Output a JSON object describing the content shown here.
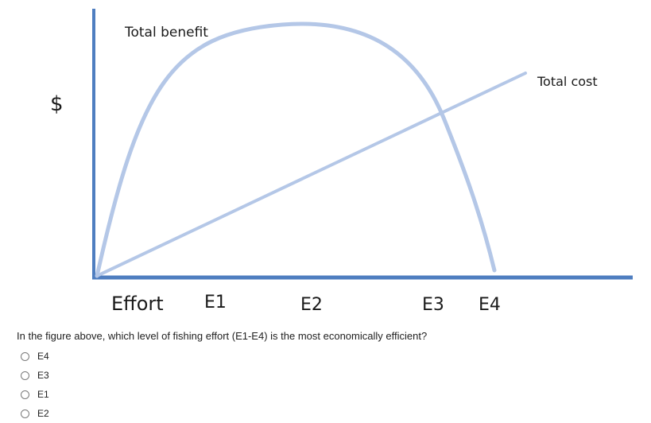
{
  "figure": {
    "y_axis_label": "$",
    "x_axis_label": "Effort",
    "x_ticks": [
      "E1",
      "E2",
      "E3",
      "E4"
    ],
    "benefit_label": "Total benefit",
    "cost_label": "Total cost",
    "axis_color": "#4f7ec0",
    "curve_color": "#b4c7e7"
  },
  "question": {
    "text": "In the figure above, which level of fishing effort (E1-E4) is the most economically efficient?"
  },
  "options": [
    {
      "label": "E4",
      "selected": false
    },
    {
      "label": "E3",
      "selected": false
    },
    {
      "label": "E1",
      "selected": false
    },
    {
      "label": "E2",
      "selected": false
    }
  ]
}
